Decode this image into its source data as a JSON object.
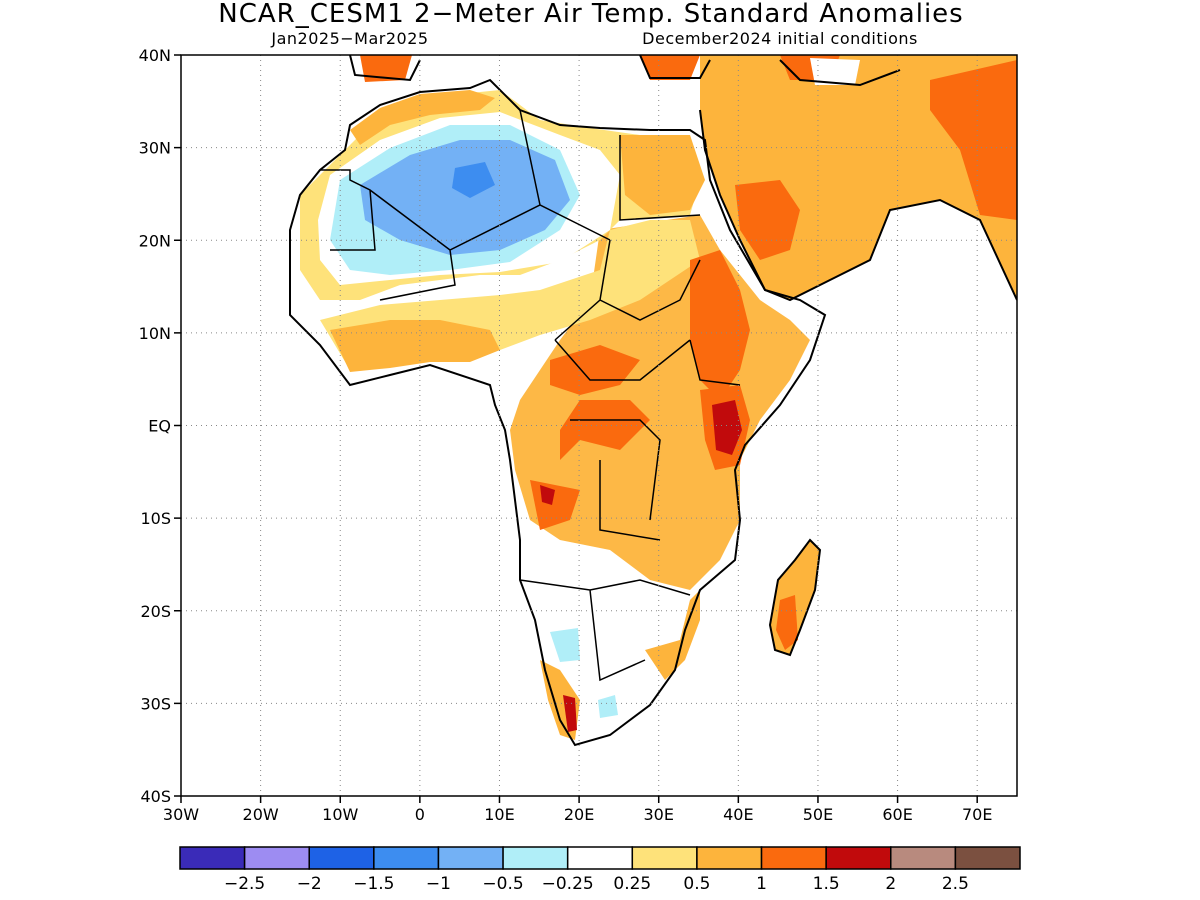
{
  "figure": {
    "title": "NCAR_CESM1 2−Meter Air Temp. Standard Anomalies",
    "subtitle_left": "Jan2025−Mar2025",
    "subtitle_right": "December2024 initial conditions"
  },
  "map": {
    "lon_range": [
      -30,
      75
    ],
    "lat_range": [
      -40,
      40
    ],
    "lon_ticks": [
      {
        "value": -30,
        "label": "30W"
      },
      {
        "value": -20,
        "label": "20W"
      },
      {
        "value": -10,
        "label": "10W"
      },
      {
        "value": 0,
        "label": "0"
      },
      {
        "value": 10,
        "label": "10E"
      },
      {
        "value": 20,
        "label": "20E"
      },
      {
        "value": 30,
        "label": "30E"
      },
      {
        "value": 40,
        "label": "40E"
      },
      {
        "value": 50,
        "label": "50E"
      },
      {
        "value": 60,
        "label": "60E"
      },
      {
        "value": 70,
        "label": "70E"
      }
    ],
    "lat_ticks": [
      {
        "value": 40,
        "label": "40N"
      },
      {
        "value": 30,
        "label": "30N"
      },
      {
        "value": 20,
        "label": "20N"
      },
      {
        "value": 10,
        "label": "10N"
      },
      {
        "value": 0,
        "label": "EQ"
      },
      {
        "value": -10,
        "label": "10S"
      },
      {
        "value": -20,
        "label": "20S"
      },
      {
        "value": -30,
        "label": "30S"
      },
      {
        "value": -40,
        "label": "40S"
      }
    ],
    "gridlines": true,
    "ocean_color": "#ffffff",
    "coast_color": "#000000"
  },
  "colorbar": {
    "colors": [
      "#3a2bb8",
      "#9d8cf2",
      "#1e62e6",
      "#3d8df0",
      "#73b1f5",
      "#b0eef8",
      "#ffffff",
      "#fee27a",
      "#fdb43c",
      "#fa6a0e",
      "#c10a0c",
      "#b88a7e",
      "#7b5040"
    ],
    "labels": [
      "−2.5",
      "−2",
      "−1.5",
      "−1",
      "−0.5",
      "−0.25",
      "0.25",
      "0.5",
      "1",
      "1.5",
      "2",
      "2.5"
    ]
  }
}
